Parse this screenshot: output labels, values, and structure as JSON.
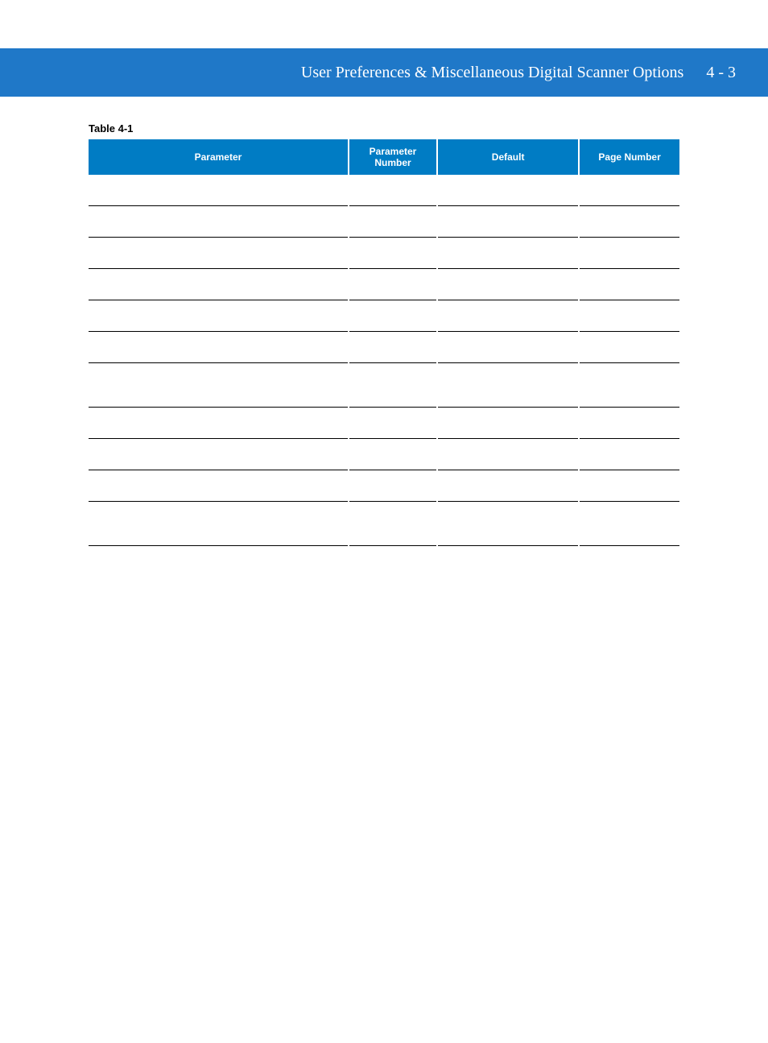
{
  "header": {
    "title": "User Preferences & Miscellaneous Digital Scanner Options",
    "page_label": "4 - 3"
  },
  "table": {
    "caption": "Table 4-1",
    "columns": [
      "Parameter",
      "Parameter Number",
      "Default",
      "Page Number"
    ]
  },
  "colors": {
    "header_band": "#1f78c8",
    "table_header_bg": "#007cc4",
    "table_header_fg": "#ffffff",
    "rule": "#000000",
    "page_bg": "#ffffff"
  }
}
